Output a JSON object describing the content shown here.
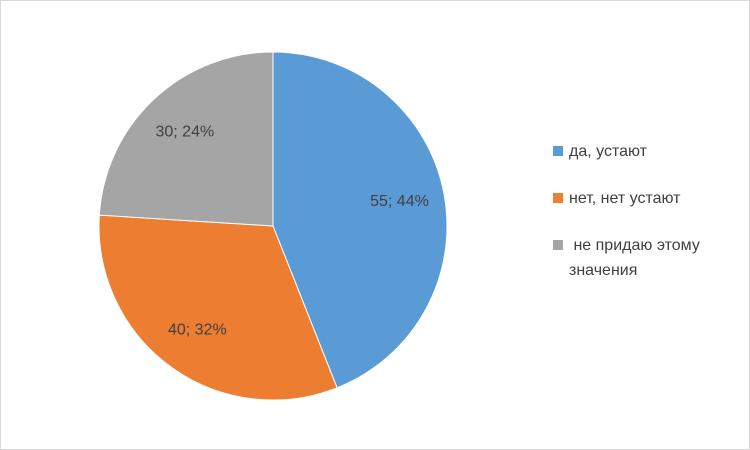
{
  "chart_data": {
    "type": "pie",
    "categories": [
      "да, устают",
      "нет, нет устают",
      " не придаю этому значения"
    ],
    "values": [
      55,
      40,
      30
    ],
    "value_labels": [
      "55; 44%",
      "40; 32%",
      "30; 24%"
    ],
    "colors": [
      "#5b9bd5",
      "#ed7d31",
      "#a5a5a5"
    ],
    "legend": "right"
  }
}
